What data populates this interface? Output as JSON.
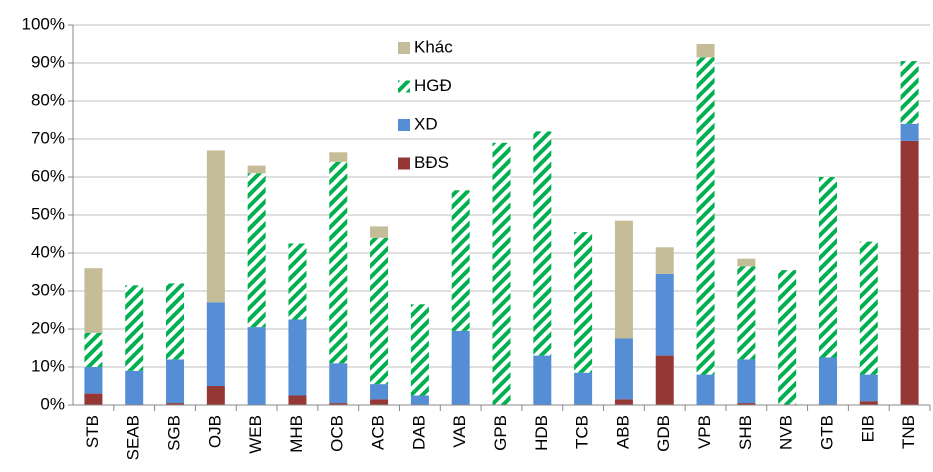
{
  "chart_data": {
    "type": "stacked_bar",
    "categories": [
      "STB",
      "SEAB",
      "SGB",
      "OJB",
      "WEB",
      "MHB",
      "OCB",
      "ACB",
      "DAB",
      "VAB",
      "GPB",
      "HDB",
      "TCB",
      "ABB",
      "GDB",
      "VPB",
      "SHB",
      "NVB",
      "GTB",
      "EIB",
      "TNB"
    ],
    "series": [
      {
        "name": "BĐS",
        "color": "#953735",
        "values": [
          3,
          0,
          0.5,
          5,
          0,
          2.5,
          0.5,
          1.5,
          0,
          0,
          0,
          0,
          0,
          1.5,
          13,
          0,
          0.5,
          0,
          0,
          1,
          69.5
        ]
      },
      {
        "name": "XD",
        "color": "#558ed5",
        "values": [
          7,
          9,
          11.5,
          22,
          20.5,
          20,
          10.5,
          4,
          2.5,
          19.5,
          0,
          13,
          8.5,
          16,
          21.5,
          8,
          11.5,
          0,
          12.5,
          7,
          4.5
        ]
      },
      {
        "name": "HGĐ",
        "color": "#00b050",
        "hatch": true,
        "values": [
          9,
          22.5,
          20,
          0,
          40.5,
          20,
          53,
          38.5,
          24,
          37,
          69,
          59,
          37,
          0,
          0,
          83.5,
          24.5,
          35.5,
          47.5,
          35,
          16.5
        ]
      },
      {
        "name": "Khác",
        "color": "#c4bd97",
        "values": [
          17,
          0,
          0,
          40,
          2,
          0,
          2.5,
          3,
          0,
          0,
          0,
          0,
          0,
          31,
          7,
          3.5,
          2,
          0,
          0,
          0,
          0
        ]
      }
    ],
    "ylim": [
      0,
      100
    ],
    "yticks": [
      {
        "value": 0,
        "label": "0%"
      },
      {
        "value": 10,
        "label": "10%"
      },
      {
        "value": 20,
        "label": "20%"
      },
      {
        "value": 30,
        "label": "30%"
      },
      {
        "value": 40,
        "label": "40%"
      },
      {
        "value": 50,
        "label": "50%"
      },
      {
        "value": 60,
        "label": "60%"
      },
      {
        "value": 70,
        "label": "70%"
      },
      {
        "value": 80,
        "label": "80%"
      },
      {
        "value": 90,
        "label": "90%"
      },
      {
        "value": 100,
        "label": "100%"
      }
    ],
    "grid": true,
    "legend": "top-center"
  }
}
